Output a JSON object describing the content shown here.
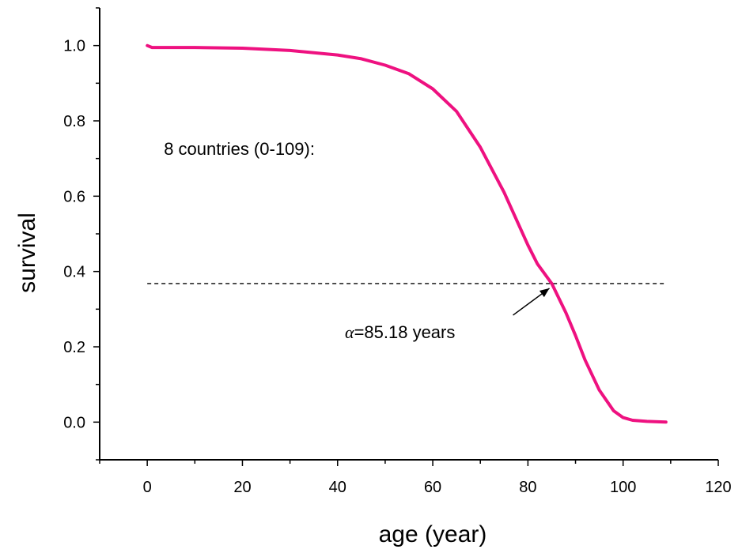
{
  "chart_data": {
    "type": "line",
    "title": "",
    "xlabel": "age (year)",
    "ylabel": "survival",
    "xlim": [
      -10,
      120
    ],
    "ylim": [
      -0.1,
      1.1
    ],
    "x_ticks": [
      0,
      20,
      40,
      60,
      80,
      100,
      120
    ],
    "x_tick_labels": [
      "0",
      "20",
      "40",
      "60",
      "80",
      "100",
      "120"
    ],
    "y_ticks": [
      0.0,
      0.2,
      0.4,
      0.6,
      0.8,
      1.0
    ],
    "y_tick_labels": [
      "0.0",
      "0.2",
      "0.4",
      "0.6",
      "0.8",
      "1.0"
    ],
    "grid": false,
    "series": [
      {
        "color": "#ee1180",
        "x": [
          0,
          1,
          5,
          10,
          20,
          30,
          40,
          45,
          50,
          55,
          60,
          65,
          70,
          75,
          80,
          82,
          85,
          88,
          90,
          92,
          95,
          98,
          100,
          102,
          105,
          109
        ],
        "y": [
          1.0,
          0.995,
          0.995,
          0.995,
          0.993,
          0.987,
          0.975,
          0.965,
          0.948,
          0.925,
          0.885,
          0.825,
          0.73,
          0.61,
          0.47,
          0.42,
          0.368,
          0.29,
          0.23,
          0.165,
          0.085,
          0.03,
          0.012,
          0.005,
          0.002,
          0.0
        ]
      }
    ],
    "reference_line": {
      "y": 0.368,
      "x_start": 0,
      "x_end": 109,
      "style": "dashed",
      "color": "#000000"
    },
    "annotations": {
      "countries": {
        "text": "8 countries (0-109):"
      },
      "alpha": {
        "symbol": "α",
        "text": "=85.18 years",
        "point": [
          85.18,
          0.368
        ]
      }
    }
  }
}
